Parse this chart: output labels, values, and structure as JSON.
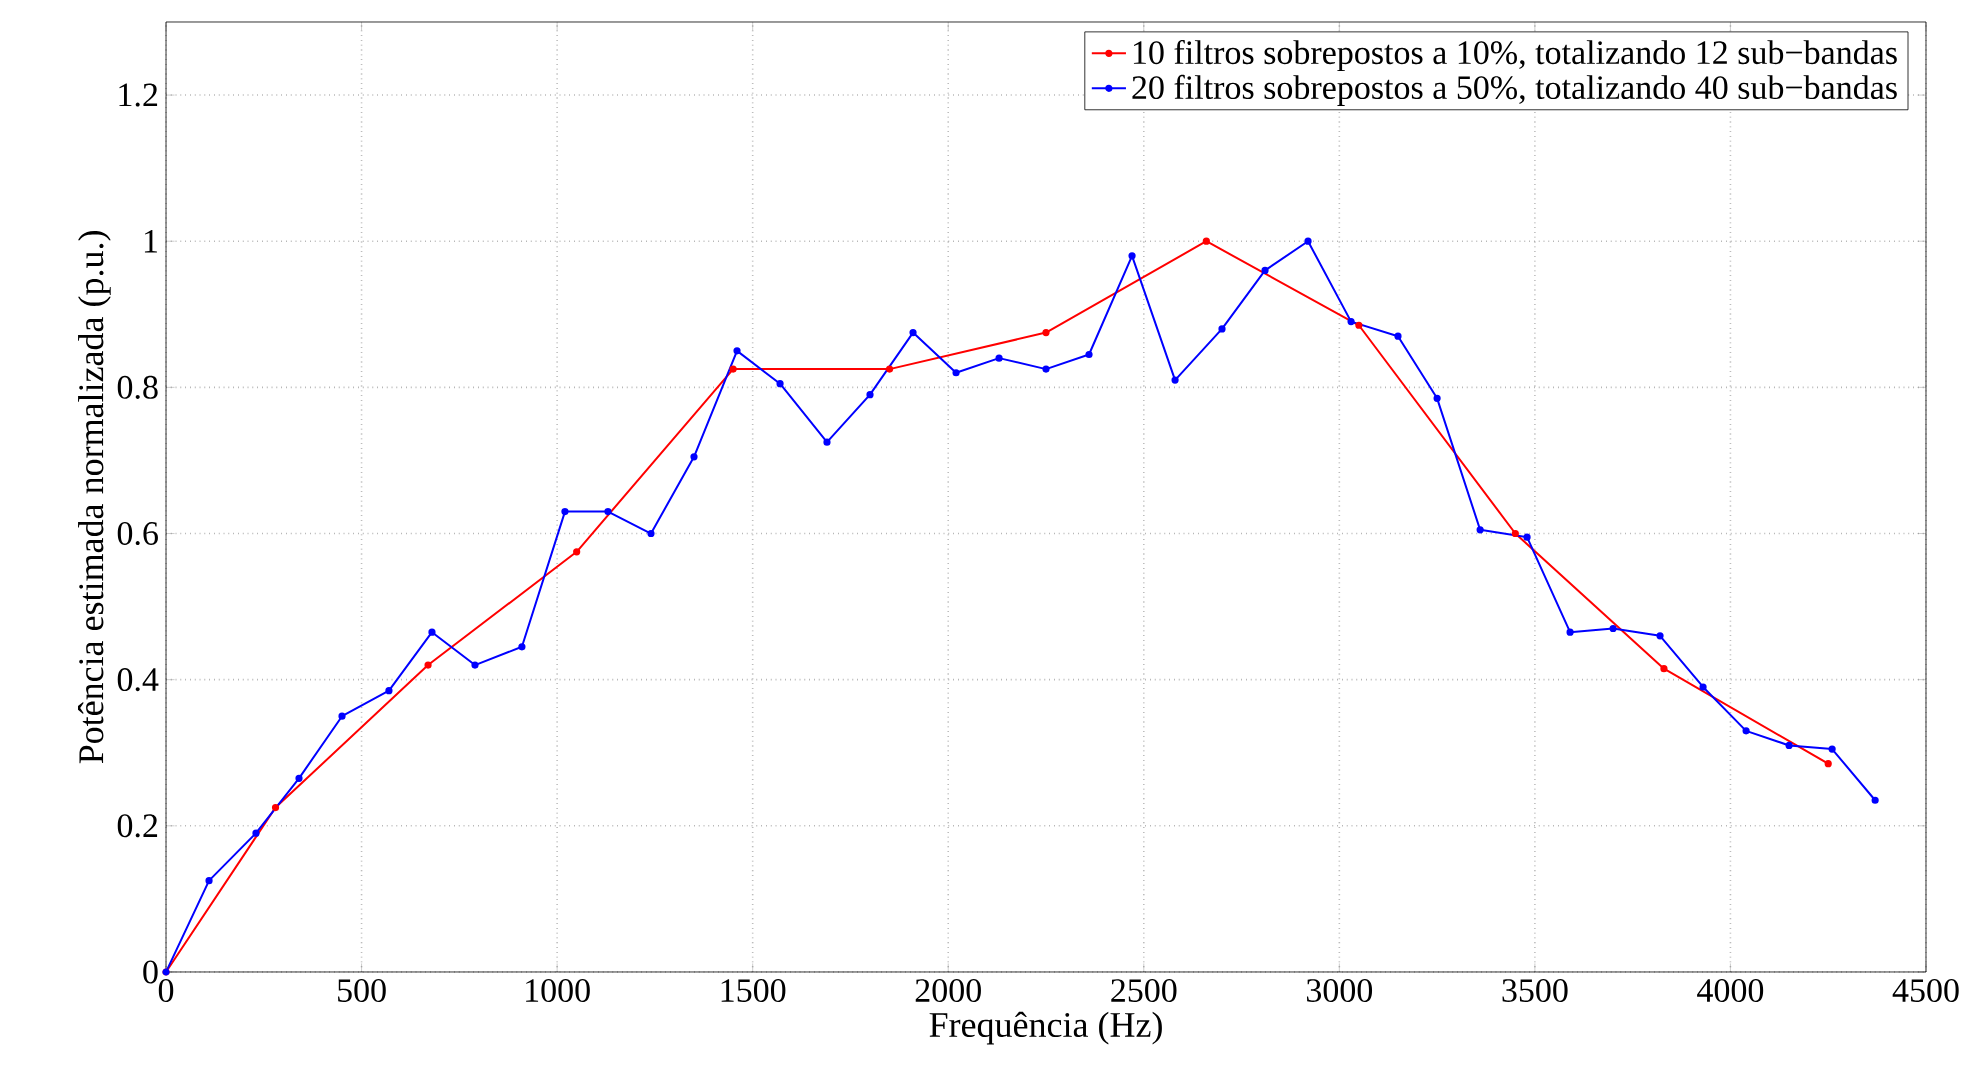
{
  "chart_data": {
    "type": "line",
    "xlabel": "Frequência (Hz)",
    "ylabel": "Potência estimada normalizada (p.u.)",
    "xlim": [
      0,
      4500
    ],
    "ylim": [
      0,
      1.3
    ],
    "xticks": [
      0,
      500,
      1000,
      1500,
      2000,
      2500,
      3000,
      3500,
      4000,
      4500
    ],
    "yticks": [
      0,
      0.2,
      0.4,
      0.6,
      0.8,
      1,
      1.2
    ],
    "grid": true,
    "legend": "top right",
    "marker": "circle",
    "line_style": "solid",
    "series": [
      {
        "name": "10 filtros sobrepostos a 10%, totalizando 12 sub−bandas",
        "color": "#ff0000",
        "x": [
          0,
          280,
          670,
          1050,
          1450,
          1850,
          2250,
          2660,
          3050,
          3450,
          3830,
          4250
        ],
        "values": [
          0,
          0.225,
          0.42,
          0.575,
          0.825,
          0.825,
          0.875,
          1.0,
          0.885,
          0.6,
          0.415,
          0.285
        ]
      },
      {
        "name": "20 filtros sobrepostos a 50%, totalizando 40 sub−bandas",
        "color": "#0000ff",
        "x": [
          0,
          110,
          230,
          340,
          450,
          570,
          680,
          790,
          910,
          1020,
          1130,
          1240,
          1350,
          1460,
          1570,
          1690,
          1800,
          1910,
          2020,
          2130,
          2250,
          2360,
          2470,
          2580,
          2700,
          2810,
          2920,
          3030,
          3150,
          3250,
          3360,
          3480,
          3590,
          3700,
          3820,
          3930,
          4040,
          4150,
          4260,
          4370
        ],
        "values": [
          0,
          0.125,
          0.19,
          0.265,
          0.35,
          0.385,
          0.465,
          0.42,
          0.445,
          0.63,
          0.63,
          0.6,
          0.705,
          0.85,
          0.805,
          0.725,
          0.79,
          0.875,
          0.82,
          0.84,
          0.825,
          0.845,
          0.98,
          0.81,
          0.88,
          0.96,
          1.0,
          0.89,
          0.87,
          0.785,
          0.605,
          0.595,
          0.465,
          0.47,
          0.46,
          0.39,
          0.33,
          0.31,
          0.305,
          0.235
        ]
      }
    ]
  }
}
